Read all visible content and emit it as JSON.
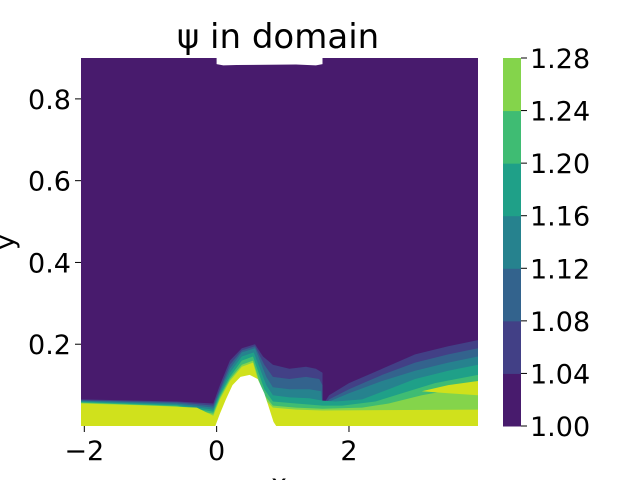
{
  "chart_data": {
    "type": "heatmap",
    "title": "ψ in domain",
    "xlabel": "x",
    "ylabel": "y",
    "x_range": [
      -2.05,
      3.95
    ],
    "y_range": [
      0.0,
      0.9
    ],
    "x_ticks": [
      {
        "value": -2,
        "label": "−2"
      },
      {
        "value": 0,
        "label": "0"
      },
      {
        "value": 2,
        "label": "2"
      }
    ],
    "y_ticks": [
      {
        "value": 0.2,
        "label": "0.2"
      },
      {
        "value": 0.4,
        "label": "0.4"
      },
      {
        "value": 0.6,
        "label": "0.6"
      },
      {
        "value": 0.8,
        "label": "0.8"
      }
    ],
    "colorbar": {
      "levels": [
        1.0,
        1.04,
        1.08,
        1.12,
        1.16,
        1.2,
        1.24,
        1.28
      ],
      "labels": [
        "1.00",
        "1.04",
        "1.08",
        "1.12",
        "1.16",
        "1.20",
        "1.24",
        "1.28"
      ],
      "colors": [
        "#481b6d",
        "#424086",
        "#33638d",
        "#26828e",
        "#1fa088",
        "#3fbc73",
        "#84d44b",
        "#d0e11c"
      ]
    },
    "background_color": "#481b6d",
    "contour_regions": [
      {
        "level": 1.04,
        "color": "#424086",
        "points": [
          [
            -2.05,
            0.0
          ],
          [
            -2.05,
            0.065
          ],
          [
            -0.6,
            0.06
          ],
          [
            -0.05,
            0.055
          ],
          [
            0.05,
            0.1
          ],
          [
            0.2,
            0.16
          ],
          [
            0.38,
            0.19
          ],
          [
            0.58,
            0.2
          ],
          [
            0.7,
            0.17
          ],
          [
            0.85,
            0.15
          ],
          [
            1.1,
            0.14
          ],
          [
            1.35,
            0.145
          ],
          [
            1.5,
            0.14
          ],
          [
            1.6,
            0.13
          ],
          [
            1.6,
            0.05
          ],
          [
            1.7,
            0.075
          ],
          [
            2.0,
            0.105
          ],
          [
            2.5,
            0.14
          ],
          [
            3.0,
            0.175
          ],
          [
            3.5,
            0.195
          ],
          [
            3.95,
            0.21
          ],
          [
            3.95,
            0.0
          ]
        ]
      },
      {
        "level": 1.08,
        "color": "#33638d",
        "points": [
          [
            -2.05,
            0.0
          ],
          [
            -2.05,
            0.063
          ],
          [
            -0.6,
            0.058
          ],
          [
            -0.05,
            0.05
          ],
          [
            0.05,
            0.09
          ],
          [
            0.2,
            0.15
          ],
          [
            0.38,
            0.185
          ],
          [
            0.58,
            0.195
          ],
          [
            0.72,
            0.15
          ],
          [
            0.85,
            0.12
          ],
          [
            1.1,
            0.115
          ],
          [
            1.35,
            0.12
          ],
          [
            1.55,
            0.115
          ],
          [
            1.6,
            0.1
          ],
          [
            1.6,
            0.045
          ],
          [
            1.7,
            0.065
          ],
          [
            2.0,
            0.09
          ],
          [
            2.5,
            0.125
          ],
          [
            3.0,
            0.155
          ],
          [
            3.5,
            0.175
          ],
          [
            3.95,
            0.19
          ],
          [
            3.95,
            0.0
          ]
        ]
      },
      {
        "level": 1.12,
        "color": "#26828e",
        "points": [
          [
            -2.05,
            0.0
          ],
          [
            -2.05,
            0.062
          ],
          [
            -0.6,
            0.055
          ],
          [
            -0.05,
            0.045
          ],
          [
            0.05,
            0.085
          ],
          [
            0.2,
            0.14
          ],
          [
            0.38,
            0.18
          ],
          [
            0.58,
            0.19
          ],
          [
            0.75,
            0.12
          ],
          [
            0.85,
            0.095
          ],
          [
            1.1,
            0.09
          ],
          [
            1.4,
            0.09
          ],
          [
            1.58,
            0.085
          ],
          [
            1.6,
            0.045
          ],
          [
            1.7,
            0.06
          ],
          [
            2.0,
            0.08
          ],
          [
            2.5,
            0.11
          ],
          [
            3.0,
            0.135
          ],
          [
            3.5,
            0.155
          ],
          [
            3.95,
            0.17
          ],
          [
            3.95,
            0.0
          ]
        ]
      },
      {
        "level": 1.16,
        "color": "#1fa088",
        "points": [
          [
            -2.05,
            0.0
          ],
          [
            -2.05,
            0.06
          ],
          [
            -0.6,
            0.052
          ],
          [
            -0.05,
            0.04
          ],
          [
            0.05,
            0.08
          ],
          [
            0.2,
            0.13
          ],
          [
            0.38,
            0.17
          ],
          [
            0.56,
            0.18
          ],
          [
            0.75,
            0.1
          ],
          [
            0.85,
            0.075
          ],
          [
            1.1,
            0.07
          ],
          [
            1.4,
            0.068
          ],
          [
            1.6,
            0.062
          ],
          [
            1.8,
            0.06
          ],
          [
            2.2,
            0.065
          ],
          [
            2.6,
            0.09
          ],
          [
            3.0,
            0.115
          ],
          [
            3.5,
            0.135
          ],
          [
            3.95,
            0.15
          ],
          [
            3.95,
            0.0
          ]
        ]
      },
      {
        "level": 1.2,
        "color": "#3fbc73",
        "points": [
          [
            -2.05,
            0.0
          ],
          [
            -2.05,
            0.058
          ],
          [
            -0.6,
            0.05
          ],
          [
            -0.05,
            0.035
          ],
          [
            0.05,
            0.075
          ],
          [
            0.2,
            0.12
          ],
          [
            0.38,
            0.16
          ],
          [
            0.55,
            0.17
          ],
          [
            0.72,
            0.09
          ],
          [
            0.85,
            0.06
          ],
          [
            1.2,
            0.055
          ],
          [
            1.6,
            0.05
          ],
          [
            1.9,
            0.05
          ],
          [
            2.4,
            0.06
          ],
          [
            2.9,
            0.085
          ],
          [
            3.3,
            0.105
          ],
          [
            3.95,
            0.125
          ],
          [
            3.95,
            0.0
          ]
        ]
      },
      {
        "level": 1.24,
        "color": "#84d44b",
        "points": [
          [
            -2.05,
            0.0
          ],
          [
            -2.05,
            0.057
          ],
          [
            -0.6,
            0.048
          ],
          [
            -0.05,
            0.03
          ],
          [
            0.05,
            0.07
          ],
          [
            0.2,
            0.115
          ],
          [
            0.38,
            0.15
          ],
          [
            0.55,
            0.16
          ],
          [
            0.7,
            0.08
          ],
          [
            0.85,
            0.05
          ],
          [
            1.2,
            0.045
          ],
          [
            1.6,
            0.042
          ],
          [
            2.2,
            0.045
          ],
          [
            2.6,
            0.055
          ],
          [
            3.1,
            0.075
          ],
          [
            3.95,
            0.1
          ],
          [
            3.95,
            0.0
          ]
        ]
      },
      {
        "level": 1.28,
        "color": "#d0e11c",
        "points": [
          [
            -2.05,
            0.0
          ],
          [
            -2.05,
            0.055
          ],
          [
            -1.0,
            0.05
          ],
          [
            -0.3,
            0.045
          ],
          [
            -0.05,
            0.025
          ],
          [
            0.05,
            0.065
          ],
          [
            0.2,
            0.11
          ],
          [
            0.38,
            0.145
          ],
          [
            0.55,
            0.155
          ],
          [
            0.7,
            0.07
          ],
          [
            0.85,
            0.045
          ],
          [
            1.2,
            0.04
          ],
          [
            1.6,
            0.038
          ],
          [
            3.95,
            0.04
          ],
          [
            3.95,
            0.0
          ]
        ]
      },
      {
        "level": 1.28,
        "color": "#d0e11c",
        "points": [
          [
            3.1,
            0.085
          ],
          [
            3.5,
            0.1
          ],
          [
            3.95,
            0.11
          ],
          [
            3.95,
            0.075
          ],
          [
            3.5,
            0.08
          ]
        ]
      }
    ],
    "empty_regions": [
      {
        "points": [
          [
            -0.02,
            0.0
          ],
          [
            0.05,
            0.03
          ],
          [
            0.14,
            0.065
          ],
          [
            0.24,
            0.1
          ],
          [
            0.36,
            0.12
          ],
          [
            0.5,
            0.125
          ],
          [
            0.62,
            0.115
          ],
          [
            0.72,
            0.08
          ],
          [
            0.8,
            0.04
          ],
          [
            0.86,
            0.01
          ],
          [
            0.9,
            0.0
          ]
        ]
      },
      {
        "points": [
          [
            0.0,
            0.9
          ],
          [
            0.0,
            0.885
          ],
          [
            0.1,
            0.882
          ],
          [
            0.3,
            0.883
          ],
          [
            1.2,
            0.884
          ],
          [
            1.5,
            0.882
          ],
          [
            1.6,
            0.885
          ],
          [
            1.6,
            0.9
          ]
        ]
      }
    ]
  }
}
